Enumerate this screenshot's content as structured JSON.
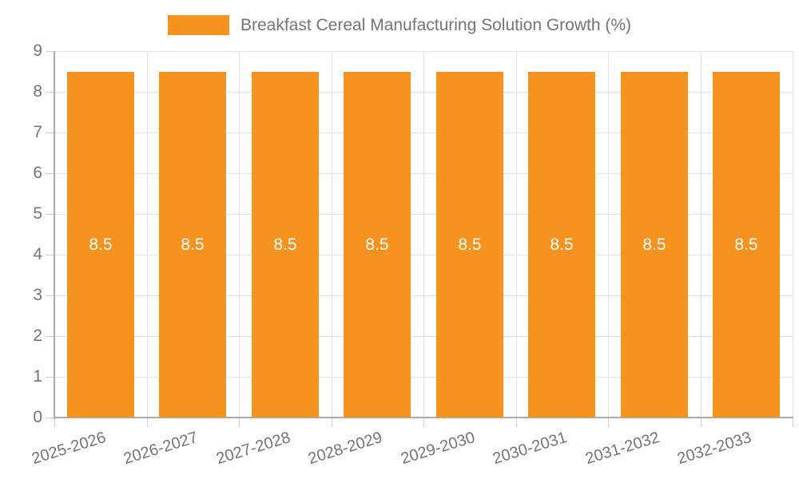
{
  "chart_data": {
    "type": "bar",
    "legend_label": "Breakfast Cereal Manufacturing Solution Growth (%)",
    "legend_position": "top",
    "categories": [
      "2025-2026",
      "2026-2027",
      "2027-2028",
      "2028-2029",
      "2029-2030",
      "2030-2031",
      "2031-2032",
      "2032-2033"
    ],
    "series": [
      {
        "name": "Breakfast Cereal Manufacturing Solution Growth (%)",
        "values": [
          8.5,
          8.5,
          8.5,
          8.5,
          8.5,
          8.5,
          8.5,
          8.5
        ],
        "labels": [
          "8.5",
          "8.5",
          "8.5",
          "8.5",
          "8.5",
          "8.5",
          "8.5",
          "8.5"
        ]
      }
    ],
    "xlabel": "",
    "ylabel": "",
    "ylim": [
      0,
      9
    ],
    "yticks": [
      "0",
      "1",
      "2",
      "3",
      "4",
      "5",
      "6",
      "7",
      "8",
      "9"
    ],
    "grid": true,
    "x_label_rotation_deg": -17,
    "colors": {
      "bar": "#F6921E",
      "grid": "#E4E4E4",
      "axis": "#ABABAB",
      "tick": "#CFCFCF",
      "text": "#757575",
      "bar_label": "#FFFFFF"
    }
  }
}
